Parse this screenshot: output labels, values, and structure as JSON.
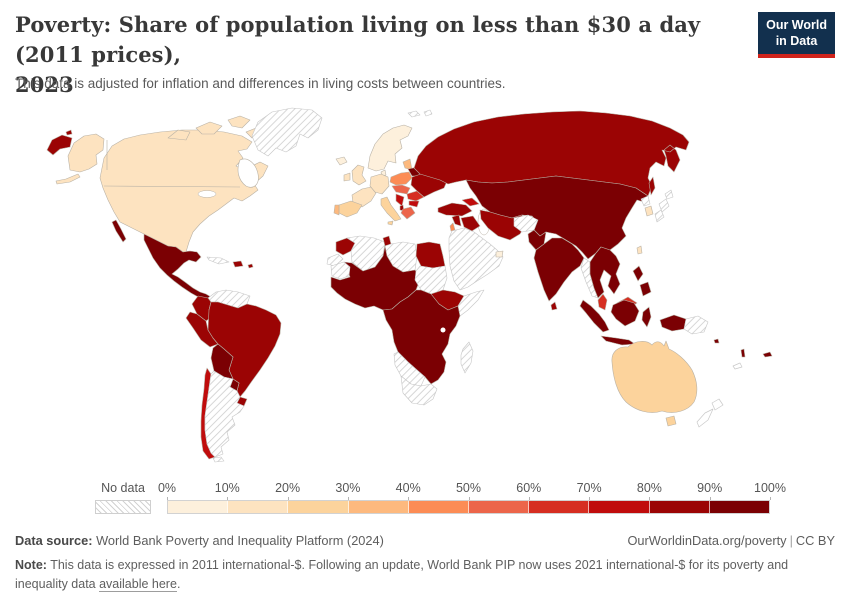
{
  "header": {
    "title_line1": "Poverty: Share of population living on less than $30 a day (2011 prices),",
    "title_line2": "2023",
    "subtitle": "This data is adjusted for inflation and differences in living costs between countries.",
    "logo": {
      "line1": "Our World",
      "line2": "in Data",
      "bg_color": "#12304e",
      "accent_color": "#d0231b"
    }
  },
  "chart_data": {
    "type": "choropleth_map",
    "title": "Poverty: Share of population living on less than $30 a day (2011 prices), 2023",
    "metric": "Share of population living on less than $30 a day",
    "prices_basis": "2011 prices",
    "year": "2023",
    "unit": "% of population",
    "legend": {
      "no_data_label": "No data",
      "tick_labels": [
        "0%",
        "10%",
        "20%",
        "30%",
        "40%",
        "50%",
        "60%",
        "70%",
        "80%",
        "90%",
        "100%"
      ],
      "bucket_colors": [
        "#fdf0dc",
        "#fde3c0",
        "#fcd39c",
        "#fdb97e",
        "#fc8c55",
        "#ec654a",
        "#d62e21",
        "#c00c0c",
        "#9b0404",
        "#7b0003"
      ],
      "no_data_pattern": "diagonal-hatch"
    },
    "regions": [
      {
        "name": "United States",
        "value": "10-20%"
      },
      {
        "name": "Canada",
        "value": "10-20%"
      },
      {
        "name": "Greenland",
        "value": "No data"
      },
      {
        "name": "Mexico",
        "value": "90-100%"
      },
      {
        "name": "Central America",
        "value": "90-100%"
      },
      {
        "name": "Cuba",
        "value": "No data"
      },
      {
        "name": "Haiti & Dominican Republic",
        "value": "80-90%"
      },
      {
        "name": "Colombia",
        "value": "80-90%"
      },
      {
        "name": "Venezuela",
        "value": "No data"
      },
      {
        "name": "Peru",
        "value": "80-90%"
      },
      {
        "name": "Brazil",
        "value": "80-90%"
      },
      {
        "name": "Bolivia",
        "value": "90-100%"
      },
      {
        "name": "Paraguay",
        "value": "90-100%"
      },
      {
        "name": "Uruguay",
        "value": "80-90%"
      },
      {
        "name": "Chile",
        "value": "70-80%"
      },
      {
        "name": "Argentina",
        "value": "No data"
      },
      {
        "name": "Norway/Sweden/Finland",
        "value": "0-10%"
      },
      {
        "name": "United Kingdom",
        "value": "10-20%"
      },
      {
        "name": "Ireland",
        "value": "10-20%"
      },
      {
        "name": "France",
        "value": "10-20%"
      },
      {
        "name": "Germany & Central Europe",
        "value": "10-20%"
      },
      {
        "name": "Spain",
        "value": "20-30%"
      },
      {
        "name": "Portugal",
        "value": "30-40%"
      },
      {
        "name": "Italy",
        "value": "20-30%"
      },
      {
        "name": "Poland",
        "value": "40-50%"
      },
      {
        "name": "Baltics",
        "value": "30-40%"
      },
      {
        "name": "Czechia/Slovakia/Hungary",
        "value": "50-60%"
      },
      {
        "name": "Romania",
        "value": "60-70%"
      },
      {
        "name": "Balkans (west)",
        "value": "70-80%"
      },
      {
        "name": "Bulgaria",
        "value": "70-80%"
      },
      {
        "name": "Greece",
        "value": "50-60%"
      },
      {
        "name": "Albania",
        "value": "80-90%"
      },
      {
        "name": "Ukraine",
        "value": "80-90%"
      },
      {
        "name": "Belarus",
        "value": "90-100%"
      },
      {
        "name": "Russia",
        "value": "80-90%"
      },
      {
        "name": "Turkey",
        "value": "80-90%"
      },
      {
        "name": "Caucasus",
        "value": "70-80%"
      },
      {
        "name": "Morocco",
        "value": "80-90%"
      },
      {
        "name": "Western Sahara",
        "value": "No data"
      },
      {
        "name": "Algeria",
        "value": "No data"
      },
      {
        "name": "Tunisia",
        "value": "80-90%"
      },
      {
        "name": "Libya",
        "value": "No data"
      },
      {
        "name": "Egypt",
        "value": "80-90%"
      },
      {
        "name": "Mauritania",
        "value": "No data"
      },
      {
        "name": "West & Sahel Africa",
        "value": "90-100%"
      },
      {
        "name": "Sudan",
        "value": "No data"
      },
      {
        "name": "Ethiopia",
        "value": "80-90%"
      },
      {
        "name": "Somalia",
        "value": "No data"
      },
      {
        "name": "Central & East Africa",
        "value": "90-100%"
      },
      {
        "name": "Namibia & Botswana",
        "value": "No data"
      },
      {
        "name": "South Africa",
        "value": "No data"
      },
      {
        "name": "Madagascar",
        "value": "No data"
      },
      {
        "name": "Saudi Arabia & Yemen & Oman",
        "value": "No data"
      },
      {
        "name": "United Arab Emirates",
        "value": "0-10%"
      },
      {
        "name": "Israel",
        "value": "40-50%"
      },
      {
        "name": "Levant",
        "value": "80-90%"
      },
      {
        "name": "Iraq",
        "value": "80-90%"
      },
      {
        "name": "Iran",
        "value": "80-90%"
      },
      {
        "name": "Afghanistan",
        "value": "No data"
      },
      {
        "name": "Kazakhstan & Central Asia",
        "value": "90-100%"
      },
      {
        "name": "Pakistan",
        "value": "90-100%"
      },
      {
        "name": "India",
        "value": "90-100%"
      },
      {
        "name": "Sri Lanka",
        "value": "80-90%"
      },
      {
        "name": "China & Mongolia",
        "value": "90-100%"
      },
      {
        "name": "Myanmar",
        "value": "No data"
      },
      {
        "name": "Thailand/Vietnam/Laos/Cambodia",
        "value": "90-100%"
      },
      {
        "name": "Malaysia",
        "value": "60-70%"
      },
      {
        "name": "Indonesia",
        "value": "90-100%"
      },
      {
        "name": "Philippines",
        "value": "90-100%"
      },
      {
        "name": "Papua New Guinea",
        "value": "No data"
      },
      {
        "name": "North Korea",
        "value": "No data"
      },
      {
        "name": "South Korea",
        "value": "10-20%"
      },
      {
        "name": "Japan",
        "value": "No data"
      },
      {
        "name": "Taiwan",
        "value": "10-20%"
      },
      {
        "name": "Sakhalin (Russia)",
        "value": "80-90%"
      },
      {
        "name": "Australia",
        "value": "20-30%"
      },
      {
        "name": "New Zealand",
        "value": "No data"
      },
      {
        "name": "Fiji",
        "value": "90-100%"
      }
    ]
  },
  "footer": {
    "data_source_label": "Data source:",
    "data_source": " World Bank Poverty and Inequality Platform (2024)",
    "attribution_link": "OurWorldinData.org/poverty",
    "separator": "|",
    "license": "CC BY",
    "note_label": "Note:",
    "note_text": " This data is expressed in 2011 international-$. Following an update, World Bank PIP now uses 2021 international-$ for its poverty and inequality data ",
    "note_link": "available here",
    "note_end": "."
  }
}
